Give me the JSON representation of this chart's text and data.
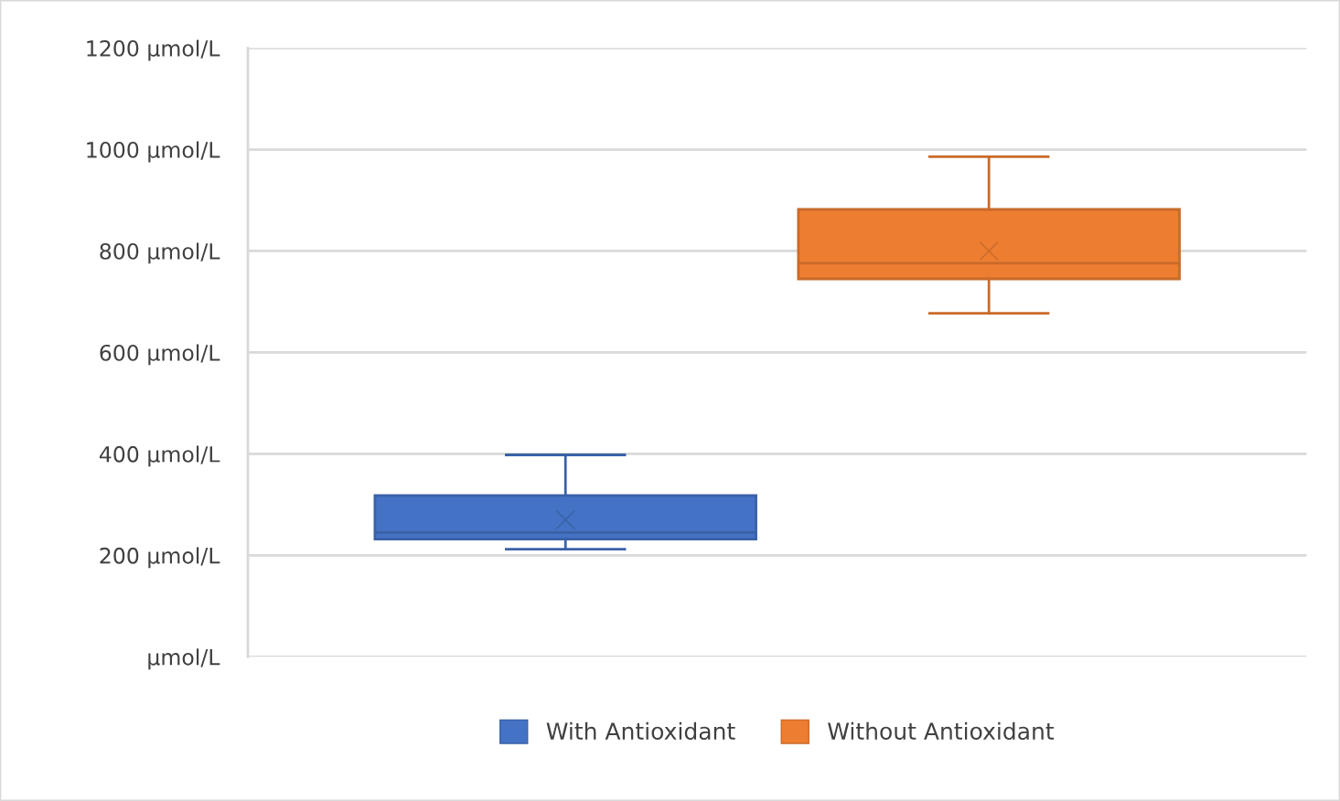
{
  "chart_data": {
    "type": "box",
    "categories": [
      null
    ],
    "series": [
      {
        "name": "With Antioxidant",
        "color": "#4472c4",
        "boxes": [
          {
            "low": 212,
            "q1": 232,
            "median": 245,
            "q3": 318,
            "high": 398,
            "mean": 270
          }
        ]
      },
      {
        "name": "Without Antioxidant",
        "color": "#ed7d31",
        "boxes": [
          {
            "low": 677,
            "q1": 745,
            "median": 776,
            "q3": 882,
            "high": 986,
            "mean": 800
          }
        ]
      }
    ],
    "ylim": [
      0,
      1200
    ],
    "yticks": [
      {
        "value": 0,
        "label": "µmol/L"
      },
      {
        "value": 200,
        "label": "200 µmol/L"
      },
      {
        "value": 400,
        "label": "400 µmol/L"
      },
      {
        "value": 600,
        "label": "600 µmol/L"
      },
      {
        "value": 800,
        "label": "800 µmol/L"
      },
      {
        "value": 1000,
        "label": "1000 µmol/L"
      },
      {
        "value": 1200,
        "label": "1200 µmol/L"
      }
    ],
    "grid": "y",
    "legend": "bottom",
    "marker": "cross",
    "tick_labels": "y"
  }
}
